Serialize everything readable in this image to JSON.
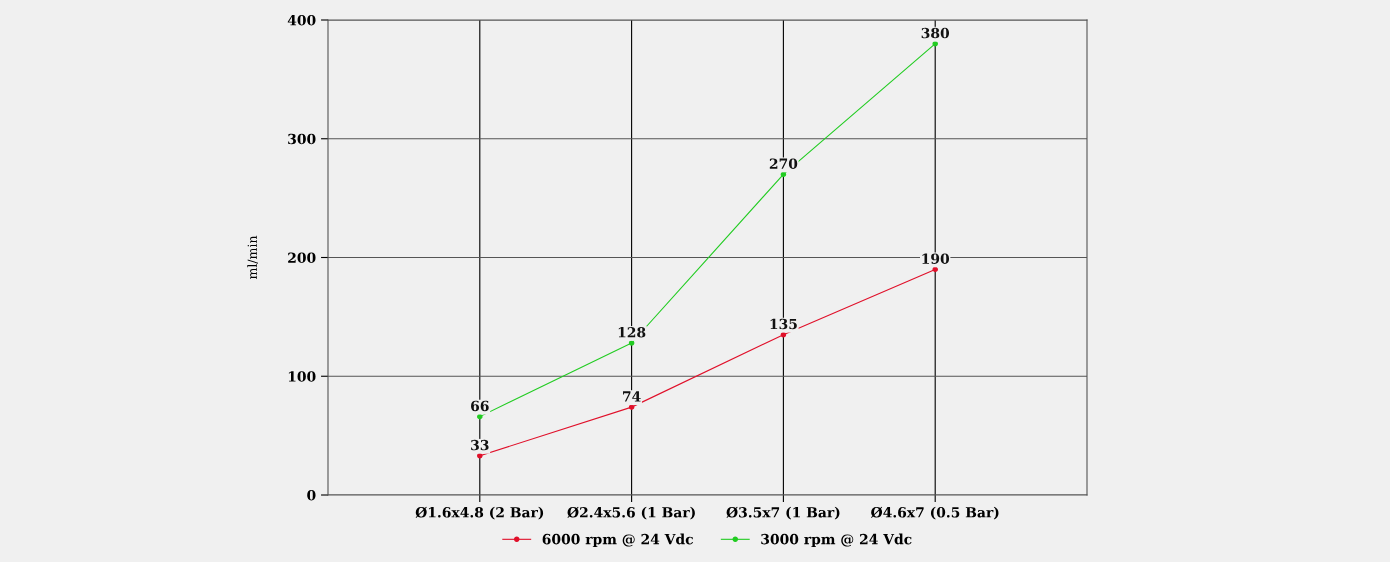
{
  "chart_data": {
    "type": "line",
    "ylabel": "ml/min",
    "categories": [
      "Ø1.6x4.8 (2 Bar)",
      "Ø2.4x5.6 (1 Bar)",
      "Ø3.5x7 (1 Bar)",
      "Ø4.6x7 (0.5 Bar)"
    ],
    "series": [
      {
        "name": "6000 rpm @ 24 Vdc",
        "color": "#e0102a",
        "values": [
          33,
          74,
          135,
          190
        ]
      },
      {
        "name": "3000 rpm @ 24 Vdc",
        "color": "#22cc22",
        "values": [
          66,
          128,
          270,
          380
        ]
      }
    ],
    "ylim": [
      0,
      400
    ],
    "yticks": [
      0,
      100,
      200,
      300,
      400
    ],
    "grid": true,
    "legend": "bottom",
    "marker": "circle",
    "line_style": "solid",
    "data_labels": true
  }
}
